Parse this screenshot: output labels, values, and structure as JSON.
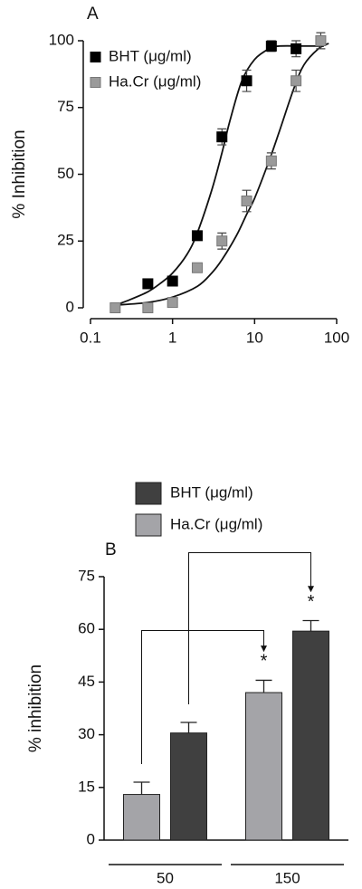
{
  "chart_data": [
    {
      "type": "scatter",
      "panel_label": "A",
      "y_label": "% Inhibition",
      "xscale": "log",
      "xlim": [
        0.1,
        100
      ],
      "xticks": [
        0.1,
        1,
        10,
        100
      ],
      "ylim": [
        0,
        100
      ],
      "yticks": [
        0,
        25,
        50,
        75,
        100
      ],
      "legend": "upper left",
      "series": [
        {
          "name": "BHT (μg/ml)",
          "color": "#000000",
          "x": [
            0.5,
            1,
            2,
            4,
            8,
            16,
            32
          ],
          "values": [
            9,
            10,
            27,
            64,
            85,
            98,
            97
          ],
          "errors": [
            1,
            1,
            1,
            3,
            4,
            2,
            3
          ],
          "fit": {
            "x": [
              0.2,
              0.3,
              0.5,
              0.7,
              1,
              1.5,
              2,
              3,
              4,
              5,
              7,
              10,
              15,
              20,
              40,
              70
            ],
            "values": [
              1,
              3,
              6,
              9,
              13,
              20,
              28,
              44,
              58,
              70,
              85,
              93,
              97,
              98,
              98,
              98
            ]
          }
        },
        {
          "name": "Ha.Cr (μg/ml)",
          "color": "#9a9a9a",
          "x": [
            0.2,
            0.5,
            1,
            2,
            4,
            8,
            16,
            32,
            64
          ],
          "values": [
            0,
            0,
            2,
            15,
            25,
            40,
            55,
            85,
            100
          ],
          "errors": [
            1,
            1,
            1,
            1,
            3,
            4,
            3,
            4,
            3
          ],
          "fit": {
            "x": [
              0.2,
              0.5,
              1,
              2,
              3,
              4,
              6,
              8,
              10,
              15,
              20,
              30,
              40,
              60,
              80
            ],
            "values": [
              1,
              2,
              4,
              8,
              13,
              18,
              27,
              35,
              41,
              55,
              66,
              82,
              91,
              97,
              99
            ]
          }
        }
      ]
    },
    {
      "type": "bar",
      "panel_label": "B",
      "y_label": "% inhibition",
      "categories": [
        "50",
        "150"
      ],
      "ylim": [
        0,
        75
      ],
      "yticks": [
        0,
        15,
        30,
        45,
        60,
        75
      ],
      "legend": "above",
      "series": [
        {
          "name": "Ha.Cr (μg/ml)",
          "color": "#a4a4a8",
          "values": [
            13,
            42
          ],
          "errors": [
            3.5,
            3.5
          ],
          "significance": [
            null,
            "*"
          ]
        },
        {
          "name": "BHT (μg/ml)",
          "color": "#404040",
          "values": [
            30.5,
            59.5
          ],
          "errors": [
            3,
            3
          ],
          "significance": [
            null,
            "*"
          ]
        }
      ]
    }
  ]
}
